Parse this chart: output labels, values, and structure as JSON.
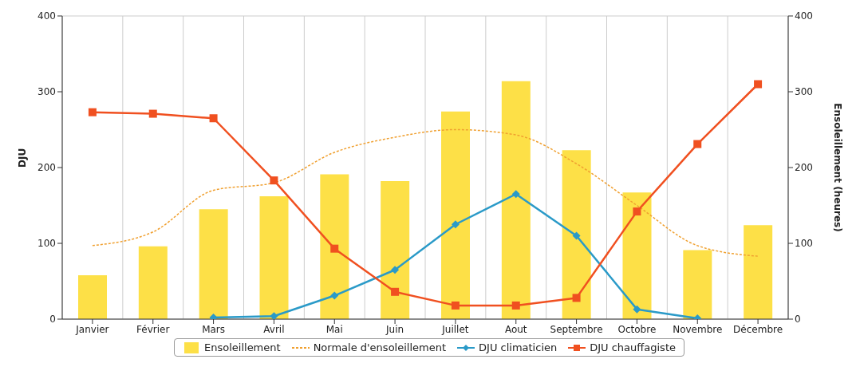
{
  "chart_data": {
    "type": "bar",
    "ylabel": "DJU",
    "y2label": "Ensoleillement (heures)",
    "categories": [
      "Janvier",
      "Février",
      "Mars",
      "Avril",
      "Mai",
      "Juin",
      "Juillet",
      "Aout",
      "Septembre",
      "Octobre",
      "Novembre",
      "Décembre"
    ],
    "series": [
      {
        "name": "Ensoleillement",
        "axis": "y2",
        "color": "#fde047",
        "values": [
          58,
          96,
          145,
          162,
          191,
          182,
          274,
          314,
          223,
          167,
          91,
          124
        ]
      },
      {
        "name": "Normale d'ensoleillement",
        "type": "line",
        "axis": "y2",
        "color": "#f0a030",
        "line_style": "dashed",
        "marker": "none",
        "values": [
          97,
          115,
          170,
          180,
          220,
          240,
          250,
          243,
          205,
          150,
          97,
          83
        ]
      },
      {
        "name": "DJU climaticien",
        "type": "line",
        "color": "#2a9ac8",
        "marker": "diamond",
        "values": [
          null,
          null,
          2,
          4,
          31,
          65,
          125,
          165,
          110,
          13,
          1,
          null
        ]
      },
      {
        "name": "DJU chauffagiste",
        "type": "line",
        "color": "#f05020",
        "marker": "square",
        "values": [
          273,
          271,
          265,
          183,
          93,
          36,
          18,
          18,
          28,
          142,
          231,
          310
        ]
      }
    ],
    "ylim": [
      0,
      400
    ],
    "yticks": [
      0,
      100,
      200,
      300,
      400
    ],
    "y2lim": [
      0,
      400
    ],
    "y2ticks": [
      0,
      100,
      200,
      300,
      400
    ],
    "grid": true,
    "legend": "bottom"
  }
}
